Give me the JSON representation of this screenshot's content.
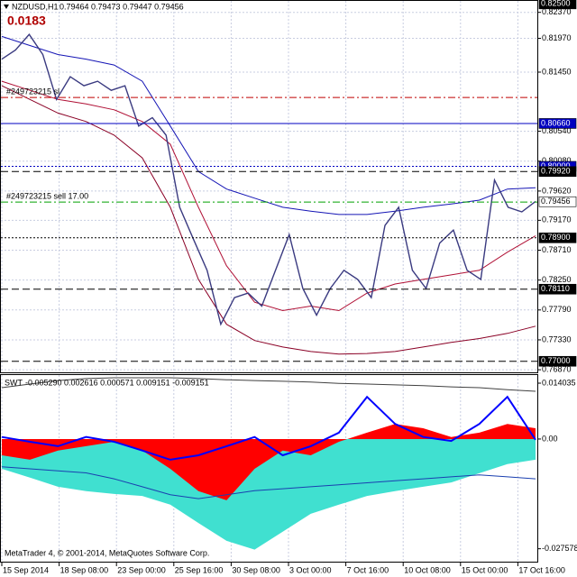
{
  "chart_data": [
    {
      "type": "line",
      "title": "NZDUSD,H1",
      "subtitle": "0.79464 0.79473 0.79447 0.79456",
      "annotation": "0.0183",
      "ylim": [
        0.7683,
        0.8256
      ],
      "yticks": [
        {
          "value": 0.8237,
          "label": "0.82370"
        },
        {
          "value": 0.8197,
          "label": "0.81970"
        },
        {
          "value": 0.8145,
          "label": "0.81450"
        },
        {
          "value": 0.8054,
          "label": "0.80540"
        },
        {
          "value": 0.8008,
          "label": "0.80080"
        },
        {
          "value": 0.7962,
          "label": "0.79620"
        },
        {
          "value": 0.7917,
          "label": "0.79170"
        },
        {
          "value": 0.7871,
          "label": "0.78710"
        },
        {
          "value": 0.7825,
          "label": "0.78250"
        },
        {
          "value": 0.7779,
          "label": "0.77790"
        },
        {
          "value": 0.7733,
          "label": "0.77330"
        },
        {
          "value": 0.7687,
          "label": "0.76870"
        }
      ],
      "grid": true,
      "series": [
        {
          "color": "#1515b5",
          "width": 1,
          "values": [
            0.82,
            0.8186,
            0.8172,
            0.8165,
            0.8156,
            0.8131,
            0.8062,
            0.7992,
            0.7965,
            0.7951,
            0.7937,
            0.7931,
            0.7926,
            0.7926,
            0.7931,
            0.7937,
            0.7942,
            0.7948,
            0.7965,
            0.7967
          ]
        },
        {
          "color": "#b01035",
          "width": 1,
          "values": [
            0.8131,
            0.8117,
            0.8103,
            0.8096,
            0.8087,
            0.8069,
            0.8034,
            0.7937,
            0.7847,
            0.7791,
            0.7778,
            0.7785,
            0.7778,
            0.7805,
            0.7819,
            0.7826,
            0.7833,
            0.784,
            0.7868,
            0.7893
          ]
        },
        {
          "color": "#8a0025",
          "width": 1,
          "values": [
            0.8124,
            0.8103,
            0.8082,
            0.8069,
            0.8048,
            0.8013,
            0.7937,
            0.7826,
            0.7757,
            0.7732,
            0.7722,
            0.7715,
            0.7711,
            0.7712,
            0.7715,
            0.7722,
            0.7729,
            0.7735,
            0.7743,
            0.7754
          ]
        },
        {
          "color": "#3a3a80",
          "width": 1.4,
          "values": [
            0.8165,
            0.8179,
            0.8203,
            0.8172,
            0.8103,
            0.8138,
            0.8124,
            0.8131,
            0.8117,
            0.8124,
            0.8062,
            0.8075,
            0.8048,
            0.7937,
            0.7888,
            0.784,
            0.7757,
            0.7798,
            0.7805,
            0.7785,
            0.784,
            0.7895,
            0.7812,
            0.7771,
            0.7812,
            0.784,
            0.7826,
            0.7798,
            0.7909,
            0.7937,
            0.784,
            0.7812,
            0.7882,
            0.7902,
            0.784,
            0.7826,
            0.7979,
            0.7937,
            0.793,
            0.7946
          ]
        }
      ],
      "levels": [
        {
          "value": 0.825,
          "label": "0.82500",
          "box": "#000000",
          "style": "none",
          "color": "#000000"
        },
        {
          "value": 0.8106,
          "text": "#249723215 sl",
          "style": "dashdot",
          "color": "#c00000"
        },
        {
          "value": 0.8066,
          "label": "0.80660",
          "box": "#0000c0",
          "style": "solid",
          "color": "#0000c0"
        },
        {
          "value": 0.8,
          "label": "0.80000",
          "box": "#0000c0",
          "style": "dot",
          "color": "#0000c0"
        },
        {
          "value": 0.7992,
          "label": "0.79920",
          "box": "#000000",
          "style": "dash",
          "color": "#000000"
        },
        {
          "value": 0.7945,
          "text": "#249723215 sell 17.00",
          "style": "dashdot",
          "color": "#00a000"
        },
        {
          "value": 0.79456,
          "label": "0.79456",
          "box": "#ffffff",
          "style": "none",
          "color": "#000000"
        },
        {
          "value": 0.789,
          "label": "0.78900",
          "box": "#000000",
          "style": "dot",
          "color": "#000000"
        },
        {
          "value": 0.7811,
          "label": "0.78110",
          "box": "#000000",
          "style": "dash",
          "color": "#000000"
        },
        {
          "value": 0.77,
          "label": "0.77000",
          "box": "#000000",
          "style": "dash",
          "color": "#000000"
        }
      ]
    },
    {
      "type": "area",
      "title": "SWT",
      "subtitle": "-0.005290 0.002616 0.000571 0.009151 -0.009151",
      "ylim": [
        -0.0306,
        0.0163
      ],
      "yticks": [
        0.014035,
        {
          "value": 0,
          "label": "0.00"
        },
        -0.027578
      ],
      "series": [
        {
          "kind": "area",
          "color": "#40e0d0",
          "values": [
            -0.0075,
            -0.0097,
            -0.012,
            -0.0131,
            -0.0138,
            -0.0143,
            -0.0165,
            -0.0211,
            -0.0256,
            -0.0278,
            -0.0233,
            -0.0188,
            -0.0165,
            -0.0143,
            -0.0131,
            -0.012,
            -0.0109,
            -0.0086,
            -0.0063,
            -0.0052
          ]
        },
        {
          "kind": "area",
          "color": "#ff0000",
          "values": [
            -0.0041,
            -0.0052,
            -0.0029,
            -0.0018,
            -0.0007,
            -0.0029,
            -0.0075,
            -0.0131,
            -0.0154,
            -0.0075,
            -0.0029,
            -0.0041,
            -0.0007,
            0.0016,
            0.0038,
            0.0027,
            0.0005,
            0.0016,
            0.0038,
            0.0027
          ]
        },
        {
          "kind": "line",
          "color": "#1a3fb0",
          "width": 1,
          "values": [
            -0.007,
            -0.0075,
            -0.008,
            -0.0085,
            -0.01,
            -0.012,
            -0.014,
            -0.015,
            -0.014,
            -0.013,
            -0.0125,
            -0.012,
            -0.0115,
            -0.011,
            -0.0105,
            -0.01,
            -0.0095,
            -0.009,
            -0.0095,
            -0.01
          ]
        },
        {
          "kind": "line",
          "color": "#404040",
          "width": 1,
          "values": [
            0.0129,
            0.0138,
            0.0147,
            0.0152,
            0.0154,
            0.0154,
            0.0154,
            0.0152,
            0.0149,
            0.0147,
            0.0145,
            0.0143,
            0.014,
            0.0138,
            0.0136,
            0.0134,
            0.0131,
            0.0129,
            0.0124,
            0.012
          ]
        },
        {
          "kind": "line",
          "color": "#0000ff",
          "width": 2,
          "values": [
            0.0005,
            -0.0007,
            -0.0018,
            0.0005,
            -0.0007,
            -0.0029,
            -0.0052,
            -0.0041,
            -0.0018,
            0.0005,
            -0.0041,
            -0.0018,
            0.0016,
            0.0106,
            0.0038,
            0.0005,
            -0.0005,
            0.0038,
            0.0106,
            -0.0002
          ]
        }
      ]
    }
  ],
  "time_axis": [
    "15 Sep 2014",
    "18 Sep 08:00",
    "23 Sep 00:00",
    "25 Sep 16:00",
    "30 Sep 08:00",
    "3 Oct 00:00",
    "7 Oct 16:00",
    "10 Oct 08:00",
    "15 Oct 00:00",
    "17 Oct 16:00"
  ],
  "footer": "MetaTrader 4, © 2001-2014, MetaQuotes Software Corp."
}
